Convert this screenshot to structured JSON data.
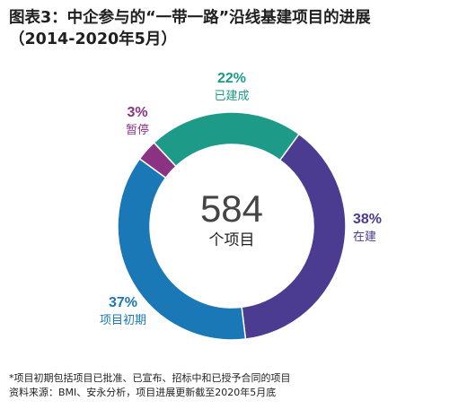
{
  "title_line1": "图表3：中企参与的“一带一路”沿线基建项目的进展",
  "title_line2": "（2014-2020年5月）",
  "center": {
    "value": "584",
    "label": "个项目"
  },
  "footnotes": [
    "*项目初期包括项目已批准、已宣布、招标中和已授予合同的项目",
    "资料来源：BMI、安永分析，项目进展更新截至2020年5月底"
  ],
  "chart_data": {
    "type": "pie",
    "variant": "donut",
    "total": 584,
    "slices": [
      {
        "label": "已建成",
        "percent_label": "22%",
        "value": 22,
        "color": "#1e9a88"
      },
      {
        "label": "在建",
        "percent_label": "38%",
        "value": 38,
        "color": "#4b3b91"
      },
      {
        "label": "项目初期",
        "percent_label": "37%",
        "value": 37,
        "color": "#1a78b6"
      },
      {
        "label": "暂停",
        "percent_label": "3%",
        "value": 3,
        "color": "#8b3382"
      }
    ]
  }
}
